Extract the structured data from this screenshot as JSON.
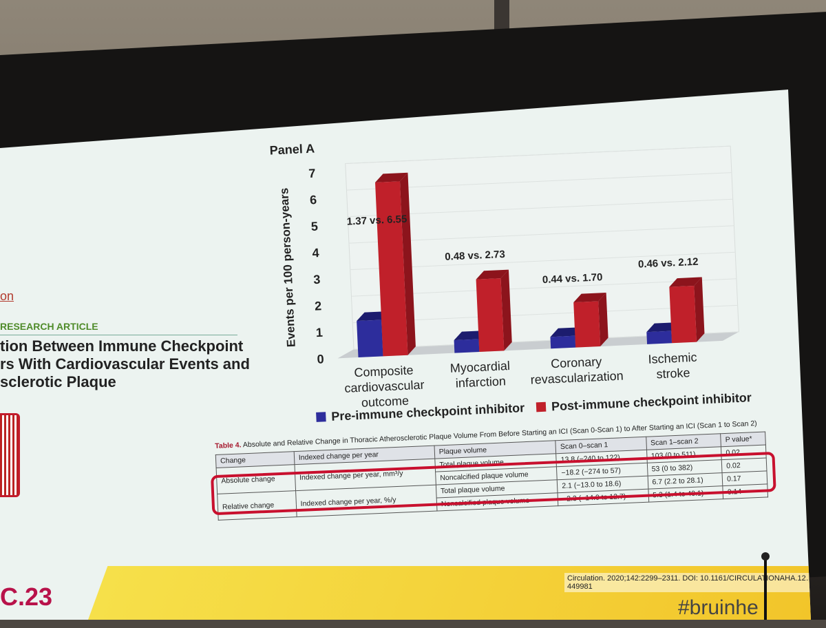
{
  "article": {
    "link_fragment": "on",
    "section_label": "RESEARCH ARTICLE",
    "title_lines": [
      "tion Between Immune Checkpoint",
      "rs With Cardiovascular Events and",
      "sclerotic Plaque"
    ]
  },
  "chart_data": {
    "type": "bar",
    "title": "Panel A",
    "ylabel": "Events per 100 person-years",
    "ylim": [
      0,
      7
    ],
    "yticks": [
      "0",
      "1",
      "2",
      "3",
      "4",
      "5",
      "6",
      "7"
    ],
    "categories": [
      [
        "Composite",
        "cardiovascular",
        "outcome"
      ],
      [
        "Myocardial",
        "infarction"
      ],
      [
        "Coronary",
        "revascularization"
      ],
      [
        "Ischemic",
        "stroke"
      ]
    ],
    "series": [
      {
        "name": "Pre-immune checkpoint inhibitor",
        "values": [
          1.37,
          0.48,
          0.44,
          0.46
        ],
        "color": "#2d2d9c"
      },
      {
        "name": "Post-immune checkpoint inhibitor",
        "values": [
          6.55,
          2.73,
          1.7,
          2.12
        ],
        "color": "#c0202a"
      }
    ],
    "annotations": [
      "1.37 vs. 6.55",
      "0.48 vs. 2.73",
      "0.44 vs. 1.70",
      "0.46 vs. 2.12"
    ],
    "legend_position": "bottom"
  },
  "table": {
    "number": "Table 4.",
    "caption": "Absolute and Relative Change in Thoracic Atherosclerotic Plaque Volume From Before Starting an ICI (Scan 0-Scan 1) to After Starting an ICI (Scan 1 to Scan 2)",
    "headers": [
      "Change",
      "Indexed change per year",
      "Plaque volume",
      "Scan 0–scan 1",
      "Scan 1–scan 2",
      "P value*"
    ],
    "rows": [
      {
        "change": "Absolute change",
        "indexed": "Indexed change per year, mm³/y",
        "items": [
          {
            "plaque": "Total plaque volume",
            "s01": "13.8 (−240 to 122)",
            "s12": "103 (0 to 511)",
            "p": "0.02"
          },
          {
            "plaque": "Noncalcified plaque volume",
            "s01": "−18.2 (−274 to 57)",
            "s12": "53 (0 to 382)",
            "p": "0.02"
          }
        ]
      },
      {
        "change": "Relative change",
        "indexed": "Indexed change per year, %/y",
        "items": [
          {
            "plaque": "Total plaque volume",
            "s01": "2.1 (−13.0 to 18.6)",
            "s12": "6.7 (2.2 to 28.1)",
            "p": "0.17"
          },
          {
            "plaque": "Noncalcified plaque volume",
            "s01": "−2.3 (−14.0 to 12.7)",
            "s12": "5.3 (1.4 to 40.1)",
            "p": "0.14"
          }
        ]
      }
    ]
  },
  "footer": {
    "citation": "Circulation. 2020;142:2299–2311. DOI: 10.1161/CIRCULATIONAHA.12…449981",
    "hashtag": "#bruinhe",
    "logo_fragment": "C.23"
  }
}
